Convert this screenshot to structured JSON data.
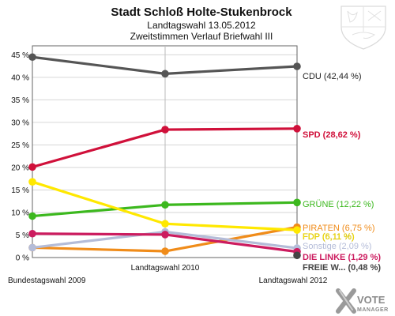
{
  "chart_data": {
    "type": "line",
    "title": "Stadt Schloß Holte-Stukenbrock",
    "subtitle_1": "Landtagswahl 13.05.2012",
    "subtitle_2": "Zweitstimmen Verlauf Briefwahl III",
    "categories": [
      "Bundestagswahl 2009",
      "Landtagswahl 2010",
      "Landtagswahl 2012"
    ],
    "ylim": [
      0,
      47
    ],
    "yticks": [
      0,
      5,
      10,
      15,
      20,
      25,
      30,
      35,
      40,
      45
    ],
    "ytick_labels": [
      "0 %",
      "5 %",
      "10 %",
      "15 %",
      "20 %",
      "25 %",
      "30 %",
      "35 %",
      "40 %",
      "45 %"
    ],
    "grid": true,
    "series": [
      {
        "name": "CDU",
        "label": "CDU (42,44 %)",
        "color": "#555555",
        "values": [
          44.5,
          40.8,
          42.44
        ]
      },
      {
        "name": "SPD",
        "label": "SPD (28,62 %)",
        "color": "#d0103a",
        "values": [
          20.1,
          28.4,
          28.62
        ]
      },
      {
        "name": "GRÜNE",
        "label": "GRÜNE (12,22 %)",
        "color": "#3cb81e",
        "values": [
          9.2,
          11.7,
          12.22
        ]
      },
      {
        "name": "PIRATEN",
        "label": "PIRATEN (6,75 %)",
        "color": "#f08c1a",
        "values": [
          2.2,
          1.4,
          6.75
        ]
      },
      {
        "name": "FDP",
        "label": "FDP (6,11 %)",
        "color": "#ffe800",
        "values": [
          16.8,
          7.5,
          6.11
        ]
      },
      {
        "name": "Sonstige",
        "label": "Sonstige (2,09 %)",
        "color": "#b4bcd8",
        "values": [
          2.2,
          5.7,
          2.09
        ]
      },
      {
        "name": "DIE LINKE",
        "label": "DIE LINKE (1,29 %)",
        "color": "#cc1c5f",
        "values": [
          5.3,
          5.1,
          1.29
        ]
      },
      {
        "name": "FREIE W...",
        "label": "FREIE W...  (0,48 %)",
        "color": "#444444",
        "values": [
          null,
          null,
          0.48
        ]
      }
    ]
  },
  "branding": {
    "line1": "VOTE",
    "line2": "MANAGER",
    "crest_icon": "nrw-coat-of-arms-icon"
  }
}
